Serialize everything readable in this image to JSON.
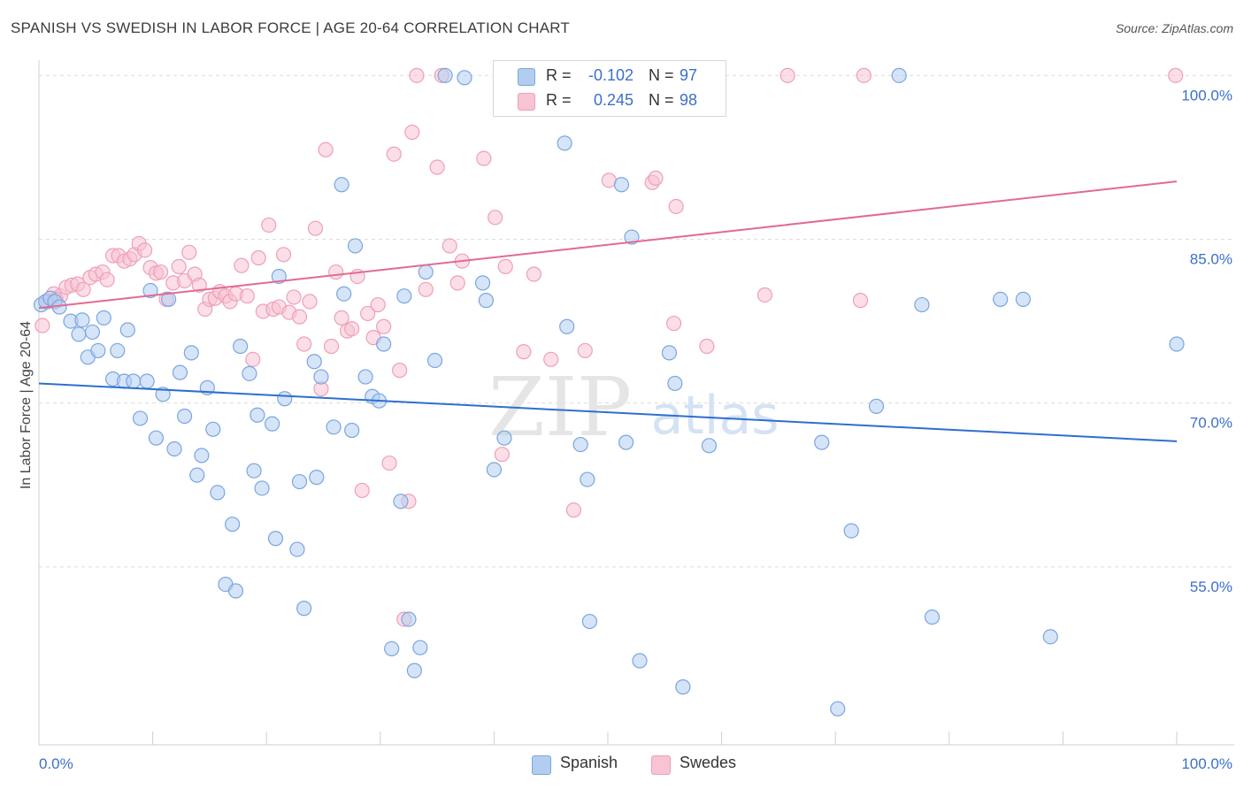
{
  "header": {
    "title": "SPANISH VS SWEDISH IN LABOR FORCE | AGE 20-64 CORRELATION CHART",
    "source": "Source: ZipAtlas.com"
  },
  "watermark": {
    "zip": "ZIP",
    "atlas": "atlas"
  },
  "legend": {
    "rows": [
      {
        "r_label": "R =",
        "r_value": "-0.102",
        "n_label": "N =",
        "n_value": "97"
      },
      {
        "r_label": "R =",
        "r_value": "0.245",
        "n_label": "N =",
        "n_value": "98"
      }
    ]
  },
  "bottom_legend": {
    "spanish": "Spanish",
    "swedes": "Swedes"
  },
  "chart_data": {
    "type": "scatter",
    "title": "SPANISH VS SWEDISH IN LABOR FORCE | AGE 20-64 CORRELATION CHART",
    "xlabel": "",
    "ylabel": "In Labor Force | Age 20-64",
    "xlim": [
      0,
      100
    ],
    "ylim": [
      40,
      101
    ],
    "x_tick_labels": [
      "0.0%",
      "100.0%"
    ],
    "y_ticks": [
      {
        "value": 100,
        "label": "100.0%"
      },
      {
        "value": 85,
        "label": "85.0%"
      },
      {
        "value": 70,
        "label": "70.0%"
      },
      {
        "value": 55,
        "label": "55.0%"
      }
    ],
    "grid": "horizontal dashed",
    "legend_position": "top-center",
    "colors": {
      "spanish_fill": "#b3cdf0",
      "spanish_stroke": "#7aa6e0",
      "spanish_line": "#2e6fcf",
      "swedes_fill": "#f8c3d3",
      "swedes_stroke": "#eea0b8",
      "swedes_line": "#e26a93",
      "value_text": "#3d6fca"
    },
    "series": [
      {
        "name": "Spanish",
        "r": -0.102,
        "n": 97,
        "trend": {
          "x": [
            0,
            100
          ],
          "y": [
            71.8,
            66.5
          ]
        },
        "points": [
          [
            0.2,
            79.0
          ],
          [
            0.6,
            79.3
          ],
          [
            1.0,
            79.6
          ],
          [
            1.4,
            79.3
          ],
          [
            1.8,
            78.8
          ],
          [
            2.8,
            77.5
          ],
          [
            3.5,
            76.3
          ],
          [
            3.8,
            77.6
          ],
          [
            4.3,
            74.2
          ],
          [
            4.7,
            76.5
          ],
          [
            5.2,
            74.8
          ],
          [
            5.7,
            77.8
          ],
          [
            6.5,
            72.2
          ],
          [
            6.9,
            74.8
          ],
          [
            7.5,
            72.0
          ],
          [
            7.8,
            76.7
          ],
          [
            8.3,
            72.0
          ],
          [
            8.9,
            68.6
          ],
          [
            9.5,
            72.0
          ],
          [
            9.8,
            80.3
          ],
          [
            10.3,
            66.8
          ],
          [
            10.9,
            70.8
          ],
          [
            11.4,
            79.5
          ],
          [
            11.9,
            65.8
          ],
          [
            12.4,
            72.8
          ],
          [
            12.8,
            68.8
          ],
          [
            13.4,
            74.6
          ],
          [
            13.9,
            63.4
          ],
          [
            14.3,
            65.2
          ],
          [
            14.8,
            71.4
          ],
          [
            15.3,
            67.6
          ],
          [
            15.7,
            61.8
          ],
          [
            17.0,
            58.9
          ],
          [
            16.4,
            53.4
          ],
          [
            17.3,
            52.8
          ],
          [
            17.7,
            75.2
          ],
          [
            18.5,
            72.7
          ],
          [
            18.9,
            63.8
          ],
          [
            19.2,
            68.9
          ],
          [
            19.6,
            62.2
          ],
          [
            20.5,
            68.1
          ],
          [
            20.8,
            57.6
          ],
          [
            21.1,
            81.6
          ],
          [
            21.6,
            70.4
          ],
          [
            22.7,
            56.6
          ],
          [
            22.9,
            62.8
          ],
          [
            23.3,
            51.2
          ],
          [
            24.2,
            73.8
          ],
          [
            24.4,
            63.2
          ],
          [
            24.8,
            72.4
          ],
          [
            25.9,
            67.8
          ],
          [
            26.6,
            90.0
          ],
          [
            26.8,
            80.0
          ],
          [
            27.5,
            67.5
          ],
          [
            27.8,
            84.4
          ],
          [
            28.7,
            72.4
          ],
          [
            29.3,
            70.6
          ],
          [
            29.9,
            70.2
          ],
          [
            30.3,
            75.4
          ],
          [
            31.0,
            47.5
          ],
          [
            31.8,
            61.0
          ],
          [
            32.1,
            79.8
          ],
          [
            32.5,
            50.2
          ],
          [
            33.0,
            45.5
          ],
          [
            33.5,
            47.6
          ],
          [
            34.0,
            82.0
          ],
          [
            34.8,
            73.9
          ],
          [
            35.7,
            100.0
          ],
          [
            37.4,
            99.8
          ],
          [
            39.0,
            81.0
          ],
          [
            39.3,
            79.4
          ],
          [
            40.0,
            63.9
          ],
          [
            40.9,
            66.8
          ],
          [
            46.2,
            93.8
          ],
          [
            46.4,
            77.0
          ],
          [
            47.6,
            66.2
          ],
          [
            48.2,
            63.0
          ],
          [
            48.4,
            50.0
          ],
          [
            51.2,
            90.0
          ],
          [
            51.6,
            66.4
          ],
          [
            52.1,
            85.2
          ],
          [
            52.8,
            46.4
          ],
          [
            55.4,
            74.6
          ],
          [
            55.9,
            71.8
          ],
          [
            56.6,
            44.0
          ],
          [
            58.9,
            66.1
          ],
          [
            68.8,
            66.4
          ],
          [
            70.2,
            42.0
          ],
          [
            71.4,
            58.3
          ],
          [
            73.6,
            69.7
          ],
          [
            75.6,
            100.0
          ],
          [
            77.6,
            79.0
          ],
          [
            78.5,
            50.4
          ],
          [
            84.5,
            79.5
          ],
          [
            86.5,
            79.5
          ],
          [
            88.9,
            48.6
          ],
          [
            100.0,
            75.4
          ]
        ]
      },
      {
        "name": "Swedes",
        "r": 0.245,
        "n": 98,
        "trend": {
          "x": [
            0,
            100
          ],
          "y": [
            78.7,
            90.3
          ]
        },
        "points": [
          [
            0.3,
            77.1
          ],
          [
            0.8,
            79.3
          ],
          [
            1.3,
            80.0
          ],
          [
            1.9,
            79.8
          ],
          [
            2.4,
            80.6
          ],
          [
            2.9,
            80.8
          ],
          [
            3.4,
            80.9
          ],
          [
            3.9,
            80.4
          ],
          [
            4.5,
            81.5
          ],
          [
            5.0,
            81.8
          ],
          [
            5.6,
            82.0
          ],
          [
            6.0,
            81.3
          ],
          [
            6.5,
            83.5
          ],
          [
            7.0,
            83.5
          ],
          [
            7.5,
            83.0
          ],
          [
            8.0,
            83.2
          ],
          [
            8.4,
            83.6
          ],
          [
            8.8,
            84.6
          ],
          [
            9.3,
            84.0
          ],
          [
            9.8,
            82.4
          ],
          [
            10.3,
            81.9
          ],
          [
            10.7,
            82.0
          ],
          [
            11.2,
            79.5
          ],
          [
            11.8,
            81.0
          ],
          [
            12.3,
            82.5
          ],
          [
            12.8,
            81.2
          ],
          [
            13.2,
            83.8
          ],
          [
            13.7,
            81.8
          ],
          [
            14.1,
            80.8
          ],
          [
            14.6,
            78.6
          ],
          [
            15.0,
            79.5
          ],
          [
            15.5,
            79.6
          ],
          [
            15.9,
            80.2
          ],
          [
            16.4,
            79.8
          ],
          [
            16.8,
            79.3
          ],
          [
            17.3,
            80.0
          ],
          [
            17.8,
            82.6
          ],
          [
            18.3,
            79.8
          ],
          [
            18.8,
            74.0
          ],
          [
            19.3,
            83.3
          ],
          [
            19.7,
            78.4
          ],
          [
            20.2,
            86.3
          ],
          [
            20.6,
            78.6
          ],
          [
            21.1,
            78.8
          ],
          [
            21.5,
            83.6
          ],
          [
            22.0,
            78.3
          ],
          [
            22.4,
            79.7
          ],
          [
            22.9,
            77.9
          ],
          [
            23.3,
            75.4
          ],
          [
            23.8,
            79.3
          ],
          [
            24.3,
            86.0
          ],
          [
            24.8,
            71.3
          ],
          [
            25.2,
            93.2
          ],
          [
            25.7,
            75.2
          ],
          [
            26.1,
            82.0
          ],
          [
            26.6,
            77.8
          ],
          [
            27.1,
            76.6
          ],
          [
            27.5,
            76.8
          ],
          [
            28.0,
            81.6
          ],
          [
            28.4,
            62.0
          ],
          [
            28.9,
            78.2
          ],
          [
            29.4,
            76.0
          ],
          [
            29.8,
            79.0
          ],
          [
            30.3,
            77.0
          ],
          [
            30.8,
            64.5
          ],
          [
            31.2,
            92.8
          ],
          [
            31.7,
            73.0
          ],
          [
            32.1,
            50.2
          ],
          [
            32.5,
            61.0
          ],
          [
            32.8,
            94.8
          ],
          [
            33.2,
            100.0
          ],
          [
            34.0,
            80.4
          ],
          [
            35.0,
            91.6
          ],
          [
            35.4,
            100.0
          ],
          [
            36.1,
            84.4
          ],
          [
            36.8,
            81.0
          ],
          [
            37.2,
            83.0
          ],
          [
            39.1,
            92.4
          ],
          [
            40.1,
            87.0
          ],
          [
            40.7,
            65.3
          ],
          [
            41.0,
            82.5
          ],
          [
            42.6,
            74.7
          ],
          [
            43.5,
            81.8
          ],
          [
            45.0,
            74.0
          ],
          [
            47.0,
            60.2
          ],
          [
            48.0,
            74.8
          ],
          [
            50.1,
            90.4
          ],
          [
            53.9,
            90.2
          ],
          [
            54.2,
            90.6
          ],
          [
            55.8,
            77.3
          ],
          [
            56.0,
            88.0
          ],
          [
            58.7,
            75.2
          ],
          [
            63.8,
            79.9
          ],
          [
            65.8,
            100.0
          ],
          [
            72.2,
            79.4
          ],
          [
            72.5,
            100.0
          ],
          [
            99.9,
            100.0
          ],
          [
            1.5,
            79.5
          ]
        ]
      }
    ]
  }
}
